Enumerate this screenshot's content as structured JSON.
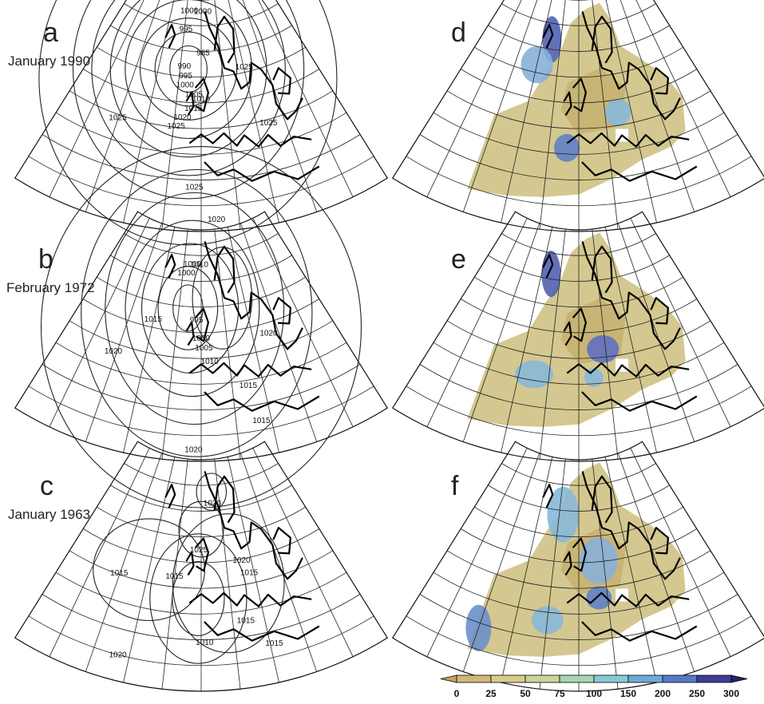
{
  "panels": [
    {
      "label": "a",
      "date": "January 1990",
      "isobars": [
        "1000",
        "1000",
        "995",
        "985",
        "990",
        "995",
        "1000",
        "1005",
        "1010",
        "1015",
        "1020",
        "1025",
        "1025",
        "1025",
        "1025",
        "1025",
        "1020"
      ]
    },
    {
      "label": "b",
      "date": "February 1972",
      "isobars": [
        "1010",
        "1010",
        "1000",
        "995",
        "1000",
        "1005",
        "1010",
        "1015",
        "1020",
        "1020",
        "1015",
        "1015",
        "1020"
      ]
    },
    {
      "label": "c",
      "date": "January 1963",
      "isobars": [
        "1020",
        "1025",
        "1015",
        "1015",
        "1020",
        "1015",
        "1015",
        "1010",
        "1020",
        "1015"
      ]
    },
    {
      "label": "d"
    },
    {
      "label": "e"
    },
    {
      "label": "f"
    }
  ],
  "colorbar": {
    "ticks": [
      "0",
      "25",
      "50",
      "75",
      "100",
      "150",
      "200",
      "250",
      "300"
    ],
    "colors": [
      "#c8a064",
      "#d2b878",
      "#d8cc8c",
      "#c8d49a",
      "#a8d4b4",
      "#88c8d4",
      "#70a8dc",
      "#5878c8",
      "#3c3c96",
      "#242470"
    ]
  },
  "colors": {
    "land_fill": "#d4c890",
    "blue_low": "#9cc8dc",
    "blue_high": "#3c50a8"
  }
}
